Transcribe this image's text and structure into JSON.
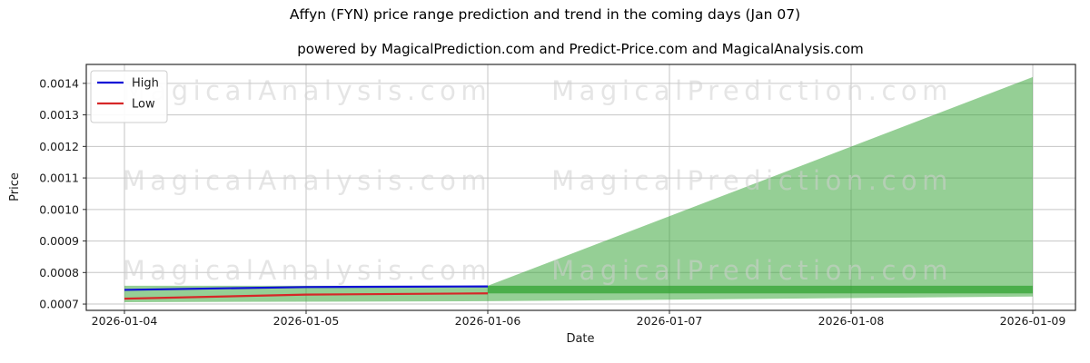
{
  "figure": {
    "title": "Affyn (FYN) price range prediction and trend in the coming days (Jan 07)",
    "subtitle": "powered by MagicalPrediction.com and Predict-Price.com and MagicalAnalysis.com"
  },
  "legend": {
    "items": [
      {
        "label": "High",
        "color": "#0d0dd6"
      },
      {
        "label": "Low",
        "color": "#d62728"
      }
    ]
  },
  "watermarks": {
    "left_text": "MagicalAnalysis.com",
    "right_text": "MagicalPrediction.com",
    "color": "#cfcfcf"
  },
  "colors": {
    "fill_green": "#2ca02c",
    "grid": "#c6c6c6",
    "spine": "#2b2b2b",
    "tick_text": "#1a1a1a",
    "title_text": "#000000"
  },
  "chart_data": {
    "type": "line+area_fan",
    "title": "Affyn (FYN) price range prediction and trend in the coming days (Jan 07)",
    "subtitle": "powered by MagicalPrediction.com and Predict-Price.com and MagicalAnalysis.com",
    "xlabel": "Date",
    "ylabel": "Price",
    "x": [
      "2026-01-04",
      "2026-01-05",
      "2026-01-06",
      "2026-01-07",
      "2026-01-08",
      "2026-01-09"
    ],
    "ylim": [
      0.00068,
      0.00146
    ],
    "yticks": [
      0.0007,
      0.0008,
      0.0009,
      0.001,
      0.0011,
      0.0012,
      0.0013,
      0.0014
    ],
    "grid": true,
    "legend_position": "upper-left",
    "series": [
      {
        "name": "High",
        "color": "#0d0dd6",
        "x_idx": [
          0,
          1,
          2
        ],
        "values": [
          0.000745,
          0.000754,
          0.000756
        ]
      },
      {
        "name": "Low",
        "color": "#d62728",
        "x_idx": [
          0,
          1,
          2
        ],
        "values": [
          0.000717,
          0.00073,
          0.000734
        ]
      }
    ],
    "bands": [
      {
        "name": "history-envelope",
        "x_idx": [
          0,
          2,
          5
        ],
        "top": [
          0.000758,
          0.000758,
          0.000758
        ],
        "bottom": [
          0.000706,
          0.000709,
          0.000724
        ]
      },
      {
        "name": "prediction-fan",
        "x_idx": [
          2,
          5
        ],
        "top": [
          0.000758,
          0.00142
        ],
        "bottom": [
          0.000734,
          0.000734
        ]
      }
    ],
    "overlap_band": {
      "x_idx": [
        2,
        5
      ],
      "top": 0.000758,
      "bottom": 0.000734
    }
  }
}
